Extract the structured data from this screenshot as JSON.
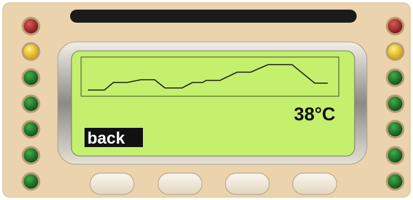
{
  "display": {
    "temperature": "38°C",
    "back_button": "back"
  }
}
